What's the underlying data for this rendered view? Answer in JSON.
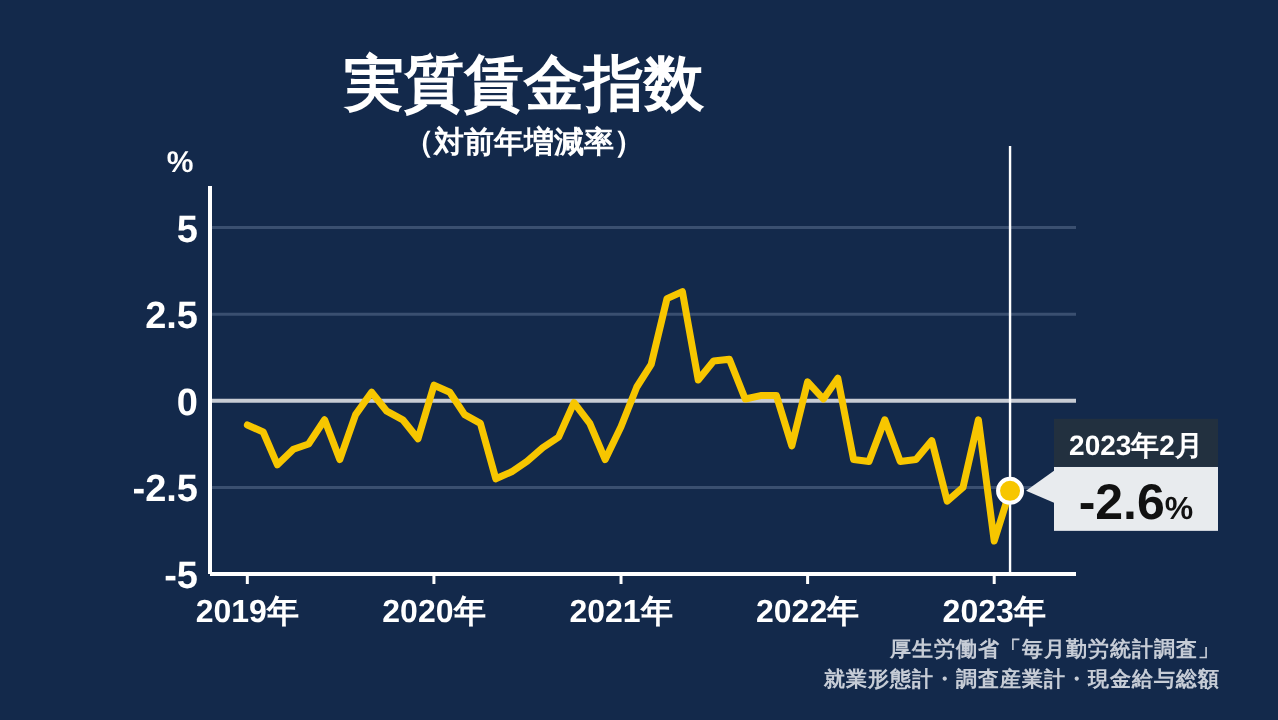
{
  "chart_data": {
    "type": "line",
    "title": "実質賃金指数",
    "subtitle": "（対前年増減率）",
    "ylabel": "%",
    "x": [
      "2019-01",
      "2019-02",
      "2019-03",
      "2019-04",
      "2019-05",
      "2019-06",
      "2019-07",
      "2019-08",
      "2019-09",
      "2019-10",
      "2019-11",
      "2019-12",
      "2020-01",
      "2020-02",
      "2020-03",
      "2020-04",
      "2020-05",
      "2020-06",
      "2020-07",
      "2020-08",
      "2020-09",
      "2020-10",
      "2020-11",
      "2020-12",
      "2021-01",
      "2021-02",
      "2021-03",
      "2021-04",
      "2021-05",
      "2021-06",
      "2021-07",
      "2021-08",
      "2021-09",
      "2021-10",
      "2021-11",
      "2021-12",
      "2022-01",
      "2022-02",
      "2022-03",
      "2022-04",
      "2022-05",
      "2022-06",
      "2022-07",
      "2022-08",
      "2022-09",
      "2022-10",
      "2022-11",
      "2022-12",
      "2023-01",
      "2023-02"
    ],
    "series": [
      {
        "color": "#f7c600",
        "values": [
          -0.7,
          -0.9,
          -1.85,
          -1.4,
          -1.25,
          -0.55,
          -1.7,
          -0.4,
          0.25,
          -0.3,
          -0.55,
          -1.1,
          0.45,
          0.25,
          -0.4,
          -0.65,
          -2.25,
          -2.05,
          -1.75,
          -1.35,
          -1.05,
          -0.05,
          -0.65,
          -1.7,
          -0.75,
          0.4,
          1.05,
          2.95,
          3.15,
          0.6,
          1.15,
          1.2,
          0.05,
          0.15,
          0.15,
          -1.3,
          0.55,
          0.05,
          0.65,
          -1.7,
          -1.75,
          -0.55,
          -1.75,
          -1.7,
          -1.15,
          -2.9,
          -2.5,
          -0.55,
          -4.05,
          -2.6
        ],
        "value_labels": [
          null,
          null,
          null,
          null,
          null,
          null,
          null,
          null,
          null,
          null,
          null,
          null,
          null,
          null,
          null,
          null,
          null,
          null,
          null,
          null,
          null,
          null,
          null,
          null,
          null,
          null,
          null,
          null,
          null,
          null,
          null,
          null,
          null,
          null,
          null,
          null,
          null,
          null,
          null,
          null,
          null,
          null,
          null,
          null,
          null,
          null,
          null,
          null,
          null,
          "-2.6%"
        ]
      }
    ],
    "xlim": [
      "2018-10-20",
      "2023-06-10"
    ],
    "xticks": [
      {
        "value": "2019",
        "label": "2019年"
      },
      {
        "value": "2020",
        "label": "2020年"
      },
      {
        "value": "2021",
        "label": "2021年"
      },
      {
        "value": "2022",
        "label": "2022年"
      },
      {
        "value": "2023",
        "label": "2023年"
      }
    ],
    "ylim": [
      -5,
      6.2
    ],
    "yticks": [
      5,
      2.5,
      0,
      -2.5,
      -5
    ],
    "grid": "y",
    "ref_lines": [
      {
        "axis": "x",
        "value": "2023-02",
        "color": "#ffffff"
      }
    ],
    "annotations": [
      {
        "text": "2023年2月",
        "x": "2023-02",
        "y": -2.6
      },
      "厚生労働省「毎月勤労統計調査」",
      "就業形態計・調査産業計・現金給与総額"
    ]
  }
}
